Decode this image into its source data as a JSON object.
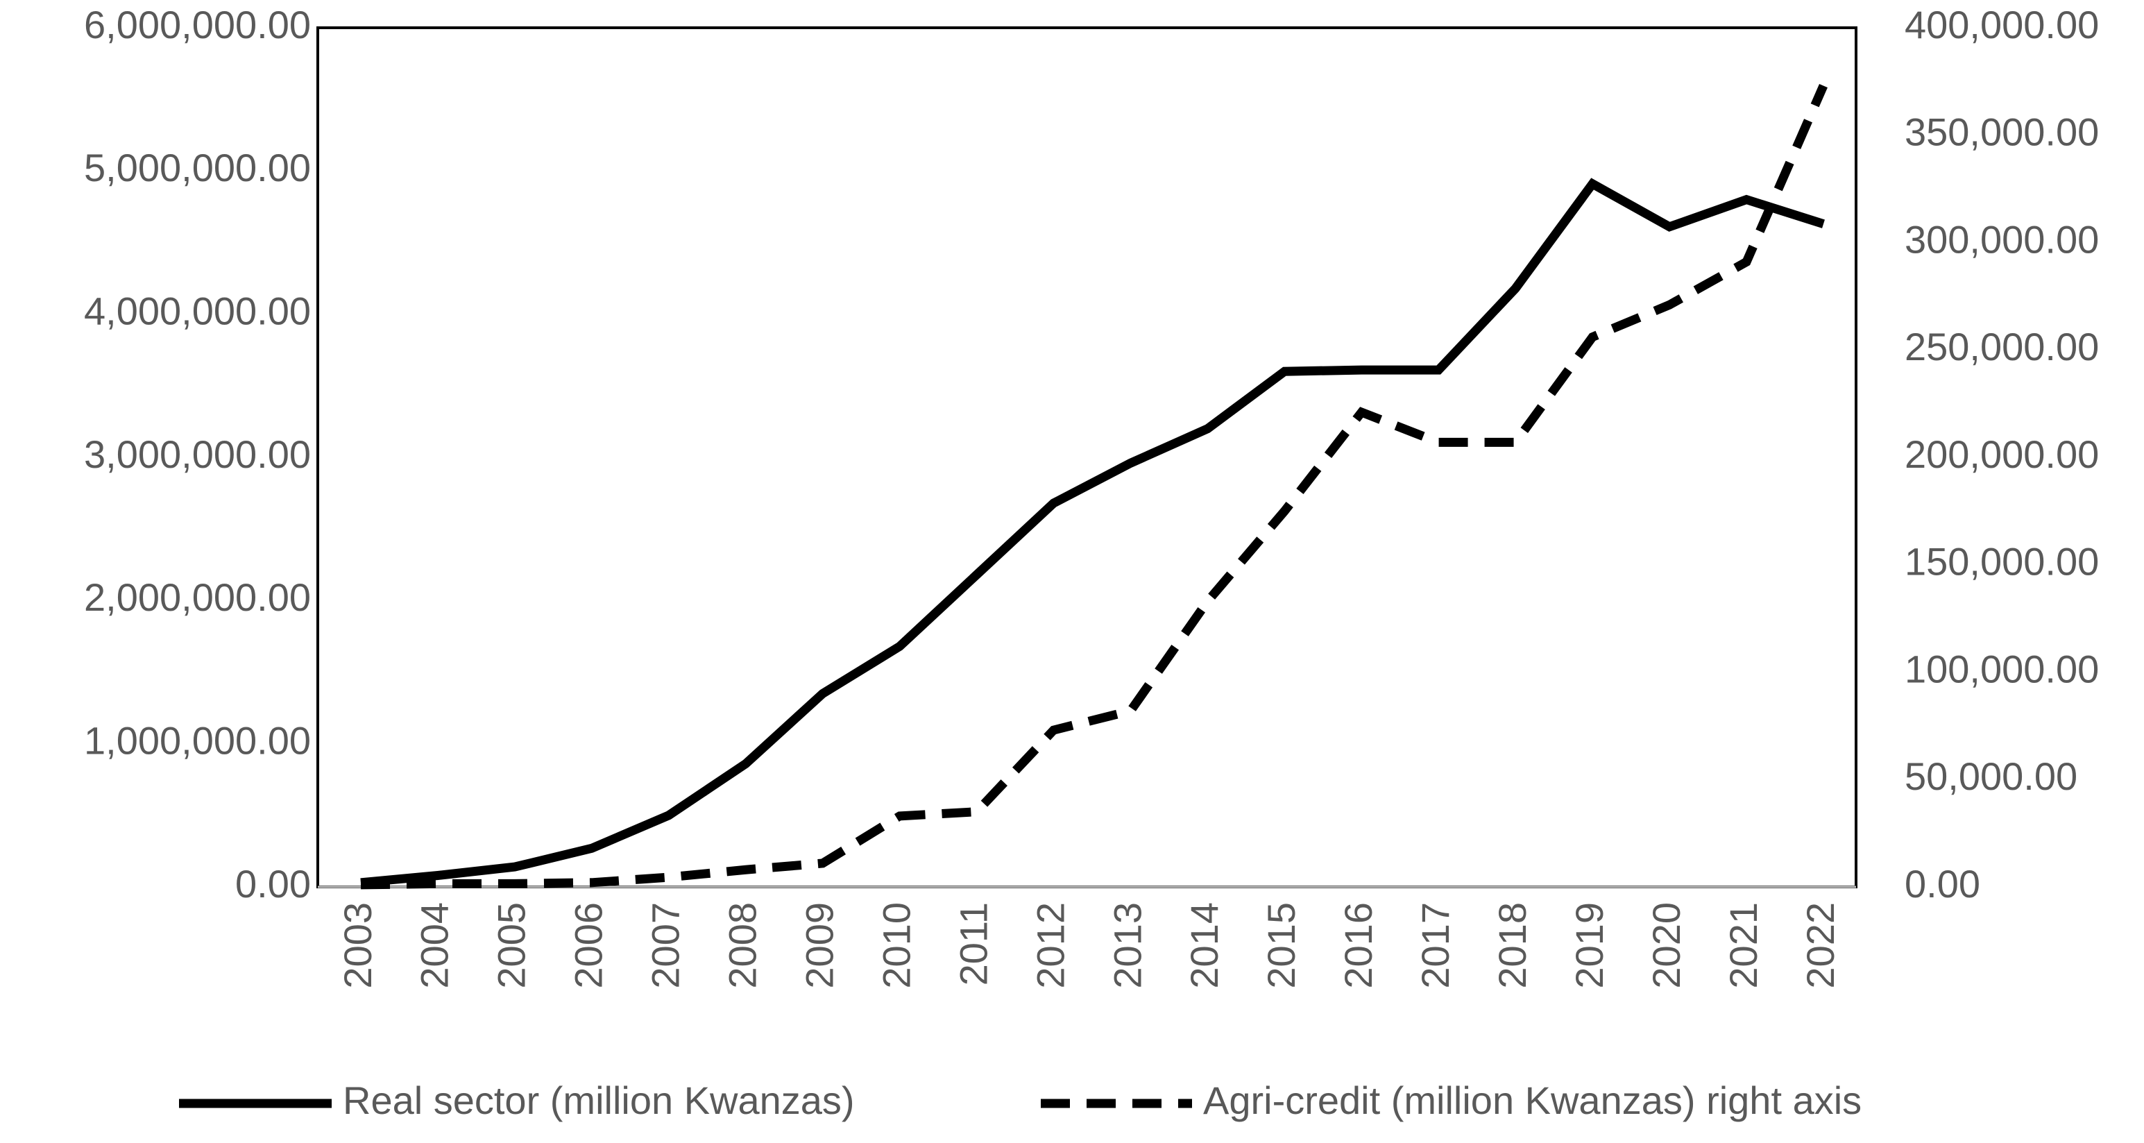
{
  "chart_data": {
    "type": "line",
    "title": "",
    "xlabel": "",
    "ylabel": "",
    "categories": [
      "2003",
      "2004",
      "2005",
      "2006",
      "2007",
      "2008",
      "2009",
      "2010",
      "2011",
      "2012",
      "2013",
      "2014",
      "2015",
      "2016",
      "2017",
      "2018",
      "2019",
      "2020",
      "2021",
      "2022"
    ],
    "series": [
      {
        "name": "Real sector (million Kwanzas)",
        "axis": "left",
        "line_style": "solid",
        "color": "#000000",
        "values": [
          30000,
          80000,
          140000,
          270000,
          500000,
          860000,
          1350000,
          1680000,
          2180000,
          2680000,
          2960000,
          3200000,
          3600000,
          3610000,
          3610000,
          4180000,
          4910000,
          4610000,
          4800000,
          4630000
        ]
      },
      {
        "name": "Agri-credit (million Kwanzas) right axis",
        "axis": "right",
        "line_style": "dashed",
        "color": "#000000",
        "values": [
          1000,
          1500,
          1500,
          2000,
          4500,
          8000,
          11000,
          33000,
          35000,
          73000,
          82000,
          133000,
          175000,
          221000,
          207000,
          207000,
          256000,
          271000,
          291000,
          373000
        ]
      }
    ],
    "y_left": {
      "ylim": [
        0,
        6000000
      ],
      "ticks": [
        0,
        1000000,
        2000000,
        3000000,
        4000000,
        5000000,
        6000000
      ],
      "tick_labels": [
        "0.00",
        "1,000,000.00",
        "2,000,000.00",
        "3,000,000.00",
        "4,000,000.00",
        "5,000,000.00",
        "6,000,000.00"
      ]
    },
    "y_right": {
      "ylim": [
        0,
        400000
      ],
      "ticks": [
        0,
        50000,
        100000,
        150000,
        200000,
        250000,
        300000,
        350000,
        400000
      ],
      "tick_labels": [
        "0.00",
        "50,000.00",
        "100,000.00",
        "150,000.00",
        "200,000.00",
        "250,000.00",
        "300,000.00",
        "350,000.00",
        "400,000.00"
      ]
    },
    "x_tick_rotation": "vertical",
    "grid": false,
    "legend_position": "bottom"
  }
}
